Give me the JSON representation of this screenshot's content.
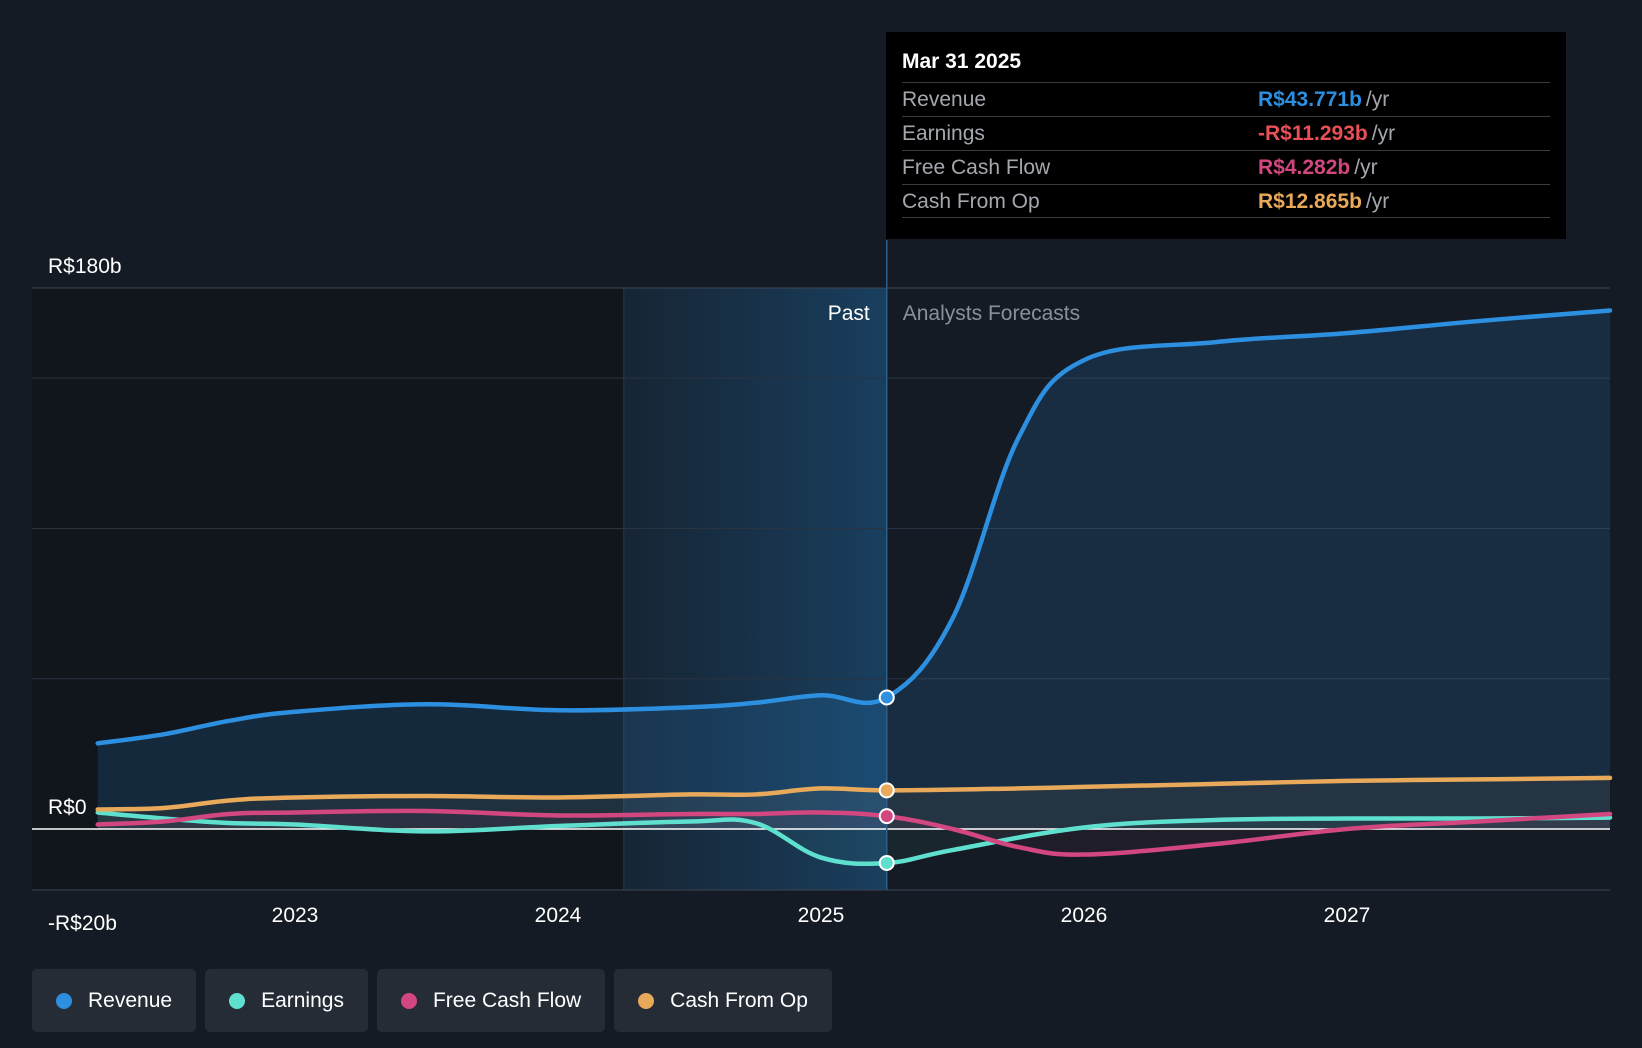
{
  "chart_data": {
    "type": "line",
    "y_tick_labels": [
      "R$180b",
      "R$0",
      "-R$20b"
    ],
    "ylim": [
      -20,
      180
    ],
    "x_tick_labels": [
      "2023",
      "2024",
      "2025",
      "2026",
      "2027"
    ],
    "x_ticks": [
      2023.0,
      2024.0,
      2025.0,
      2026.0,
      2027.0
    ],
    "xlim": [
      2022.0,
      2028.0
    ],
    "grid": true,
    "past_label": "Past",
    "forecast_label": "Analysts Forecasts",
    "divider_x": 2025.25,
    "series": [
      {
        "name": "Revenue",
        "color": "#2d8fe0",
        "points": [
          [
            2022.25,
            28.5
          ],
          [
            2022.5,
            31.5
          ],
          [
            2022.75,
            36
          ],
          [
            2023.0,
            39
          ],
          [
            2023.5,
            41.5
          ],
          [
            2024.0,
            39.5
          ],
          [
            2024.5,
            40.5
          ],
          [
            2024.75,
            42.0
          ],
          [
            2025.0,
            44.5
          ],
          [
            2025.25,
            43.771
          ],
          [
            2025.5,
            70
          ],
          [
            2025.75,
            130
          ],
          [
            2026.0,
            156
          ],
          [
            2026.5,
            162
          ],
          [
            2027.0,
            165
          ],
          [
            2027.5,
            169
          ],
          [
            2028.0,
            172.5
          ]
        ]
      },
      {
        "name": "Earnings",
        "color": "#5fe0cf",
        "points": [
          [
            2022.25,
            5.5
          ],
          [
            2022.5,
            3.5
          ],
          [
            2022.75,
            2.0
          ],
          [
            2023.0,
            1.5
          ],
          [
            2023.5,
            -0.8
          ],
          [
            2024.0,
            1.0
          ],
          [
            2024.5,
            2.5
          ],
          [
            2024.75,
            2.0
          ],
          [
            2025.0,
            -9.5
          ],
          [
            2025.25,
            -11.293
          ],
          [
            2025.5,
            -7
          ],
          [
            2026.0,
            0.5
          ],
          [
            2026.5,
            3.0
          ],
          [
            2027.0,
            3.5
          ],
          [
            2027.5,
            3.5
          ],
          [
            2028.0,
            3.8
          ]
        ]
      },
      {
        "name": "Free Cash Flow",
        "color": "#d2477f",
        "points": [
          [
            2022.25,
            1.5
          ],
          [
            2022.5,
            2.5
          ],
          [
            2022.75,
            5.0
          ],
          [
            2023.0,
            5.5
          ],
          [
            2023.5,
            6.0
          ],
          [
            2024.0,
            4.5
          ],
          [
            2024.5,
            5.0
          ],
          [
            2024.75,
            5.0
          ],
          [
            2025.0,
            5.5
          ],
          [
            2025.25,
            4.282
          ],
          [
            2025.5,
            0
          ],
          [
            2025.75,
            -6
          ],
          [
            2026.0,
            -8.5
          ],
          [
            2026.5,
            -5
          ],
          [
            2027.0,
            0
          ],
          [
            2027.5,
            2.5
          ],
          [
            2028.0,
            5.0
          ]
        ]
      },
      {
        "name": "Cash From Op",
        "color": "#e8a95a",
        "points": [
          [
            2022.25,
            6.5
          ],
          [
            2022.5,
            7.0
          ],
          [
            2022.75,
            9.5
          ],
          [
            2023.0,
            10.5
          ],
          [
            2023.5,
            11.0
          ],
          [
            2024.0,
            10.5
          ],
          [
            2024.5,
            11.5
          ],
          [
            2024.75,
            11.5
          ],
          [
            2025.0,
            13.5
          ],
          [
            2025.25,
            12.865
          ],
          [
            2025.75,
            13.5
          ],
          [
            2026.0,
            14.0
          ],
          [
            2026.5,
            15.0
          ],
          [
            2027.0,
            16.0
          ],
          [
            2027.5,
            16.5
          ],
          [
            2028.0,
            17.0
          ]
        ]
      }
    ]
  },
  "tooltip": {
    "date": "Mar 31 2025",
    "rows": [
      {
        "label": "Revenue",
        "value": "R$43.771b",
        "unit": "/yr",
        "color": "#2d8fe0"
      },
      {
        "label": "Earnings",
        "value": "-R$11.293b",
        "unit": "/yr",
        "color": "#e84f56"
      },
      {
        "label": "Free Cash Flow",
        "value": "R$4.282b",
        "unit": "/yr",
        "color": "#d2477f"
      },
      {
        "label": "Cash From Op",
        "value": "R$12.865b",
        "unit": "/yr",
        "color": "#e8a95a"
      }
    ]
  },
  "legend": [
    {
      "label": "Revenue",
      "color": "#2d8fe0"
    },
    {
      "label": "Earnings",
      "color": "#5fe0cf"
    },
    {
      "label": "Free Cash Flow",
      "color": "#d2477f"
    },
    {
      "label": "Cash From Op",
      "color": "#e8a95a"
    }
  ]
}
